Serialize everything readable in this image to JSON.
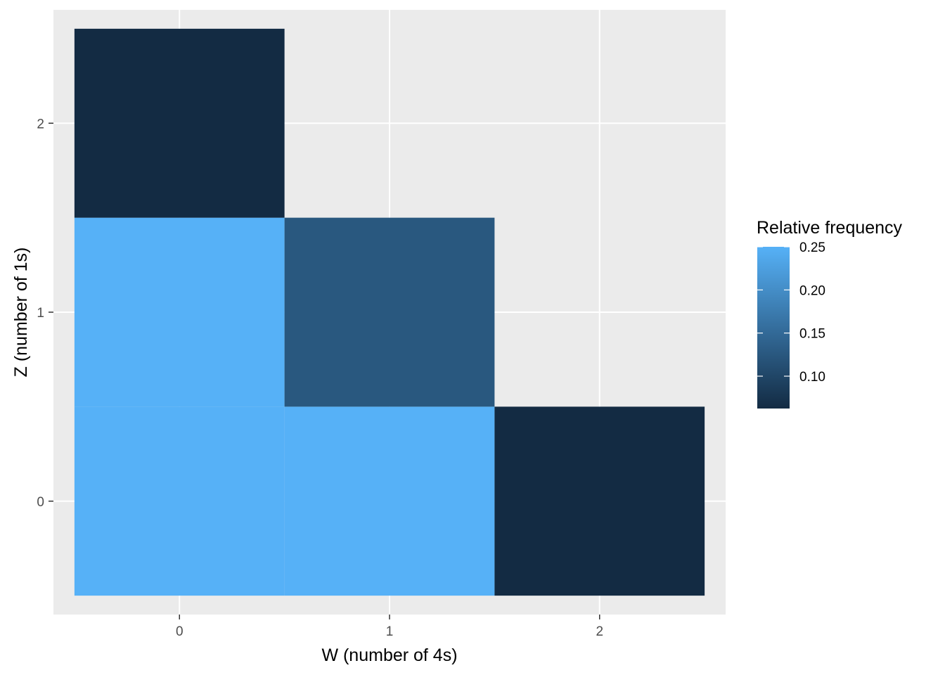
{
  "chart_data": {
    "type": "heatmap",
    "title": "",
    "xlabel": "W (number of 4s)",
    "ylabel": "Z (number of 1s)",
    "x_categories": [
      "0",
      "1",
      "2"
    ],
    "y_categories": [
      "0",
      "1",
      "2"
    ],
    "xlim": [
      -0.5,
      2.5
    ],
    "ylim": [
      -0.5,
      2.5
    ],
    "grid": true,
    "legend": {
      "title": "Relative frequency",
      "placement": "right",
      "breaks": [
        0.25,
        0.2,
        0.15,
        0.1
      ],
      "break_labels": [
        "0.25",
        "0.20",
        "0.15",
        "0.10"
      ],
      "range": [
        0.0625,
        0.25
      ]
    },
    "cells": [
      {
        "x": 0,
        "y": 0,
        "value": 0.25
      },
      {
        "x": 1,
        "y": 0,
        "value": 0.25
      },
      {
        "x": 2,
        "y": 0,
        "value": 0.0625
      },
      {
        "x": 0,
        "y": 1,
        "value": 0.25
      },
      {
        "x": 1,
        "y": 1,
        "value": 0.125
      },
      {
        "x": 0,
        "y": 2,
        "value": 0.0625
      }
    ],
    "colors": {
      "low": "#132B43",
      "high": "#56B1F7",
      "panel_background": "#EBEBEB",
      "grid_major": "#FFFFFF"
    }
  }
}
